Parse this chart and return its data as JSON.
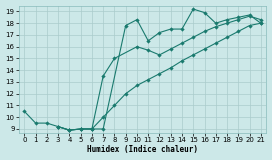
{
  "xlabel": "Humidex (Indice chaleur)",
  "bg_color": "#cce8e8",
  "grid_color": "#aacccc",
  "line_color": "#1a7a6e",
  "xlim": [
    -0.5,
    21.5
  ],
  "ylim": [
    8.7,
    19.5
  ],
  "xticks": [
    0,
    1,
    2,
    3,
    4,
    5,
    6,
    7,
    8,
    9,
    10,
    11,
    12,
    13,
    14,
    15,
    16,
    17,
    18,
    19,
    20,
    21
  ],
  "yticks": [
    9,
    10,
    11,
    12,
    13,
    14,
    15,
    16,
    17,
    18,
    19
  ],
  "line1_x": [
    0,
    1,
    2,
    3,
    4,
    5,
    6,
    7,
    9,
    10,
    11,
    12,
    13,
    14,
    15,
    16,
    17,
    18,
    19,
    20,
    21
  ],
  "line1_y": [
    10.5,
    9.5,
    9.5,
    9.2,
    8.9,
    9.0,
    9.0,
    9.0,
    17.8,
    18.3,
    16.5,
    17.2,
    17.5,
    17.5,
    19.2,
    18.9,
    18.0,
    18.3,
    18.5,
    18.7,
    18.0
  ],
  "line2_x": [
    3,
    4,
    5,
    6,
    7,
    8,
    10,
    11,
    12,
    13,
    14,
    15,
    16,
    17,
    18,
    19,
    20,
    21
  ],
  "line2_y": [
    9.2,
    8.9,
    9.0,
    9.0,
    13.5,
    15.0,
    16.0,
    15.7,
    15.3,
    15.8,
    16.3,
    16.8,
    17.3,
    17.7,
    18.0,
    18.3,
    18.6,
    18.3
  ],
  "line3_x": [
    3,
    4,
    5,
    6,
    7,
    8,
    9,
    10,
    11,
    12,
    13,
    14,
    15,
    16,
    17,
    18,
    19,
    20,
    21
  ],
  "line3_y": [
    9.2,
    8.9,
    9.0,
    9.0,
    10.0,
    11.0,
    12.0,
    12.7,
    13.2,
    13.7,
    14.2,
    14.8,
    15.3,
    15.8,
    16.3,
    16.8,
    17.3,
    17.8,
    18.0
  ]
}
